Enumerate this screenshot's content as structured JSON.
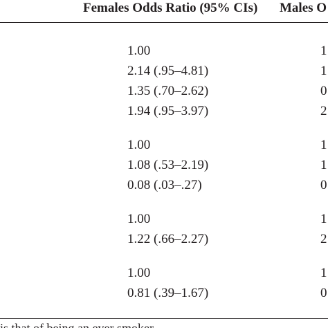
{
  "table": {
    "header": {
      "females": "Females Odds Ratio (95% CIs)",
      "males": "Males O"
    },
    "groups": [
      {
        "rows": [
          {
            "females": "1.00",
            "males": "1"
          },
          {
            "females": "2.14 (.95–4.81)",
            "males": "1"
          },
          {
            "females": "1.35 (.70–2.62)",
            "males": "0"
          },
          {
            "females": "1.94 (.95–3.97)",
            "males": "2"
          }
        ]
      },
      {
        "rows": [
          {
            "females": "1.00",
            "males": "1"
          },
          {
            "females": "1.08 (.53–2.19)",
            "males": "1"
          },
          {
            "females": "0.08 (.03–.27)",
            "males": "0"
          }
        ]
      },
      {
        "rows": [
          {
            "females": "1.00",
            "males": "1"
          },
          {
            "females": "1.22 (.66–2.27)",
            "males": "2"
          }
        ]
      },
      {
        "rows": [
          {
            "females": "1.00",
            "males": "1"
          },
          {
            "females": "0.81 (.39–1.67)",
            "males": "0"
          }
        ]
      }
    ],
    "footnote": "is that of being an ever smoker."
  }
}
